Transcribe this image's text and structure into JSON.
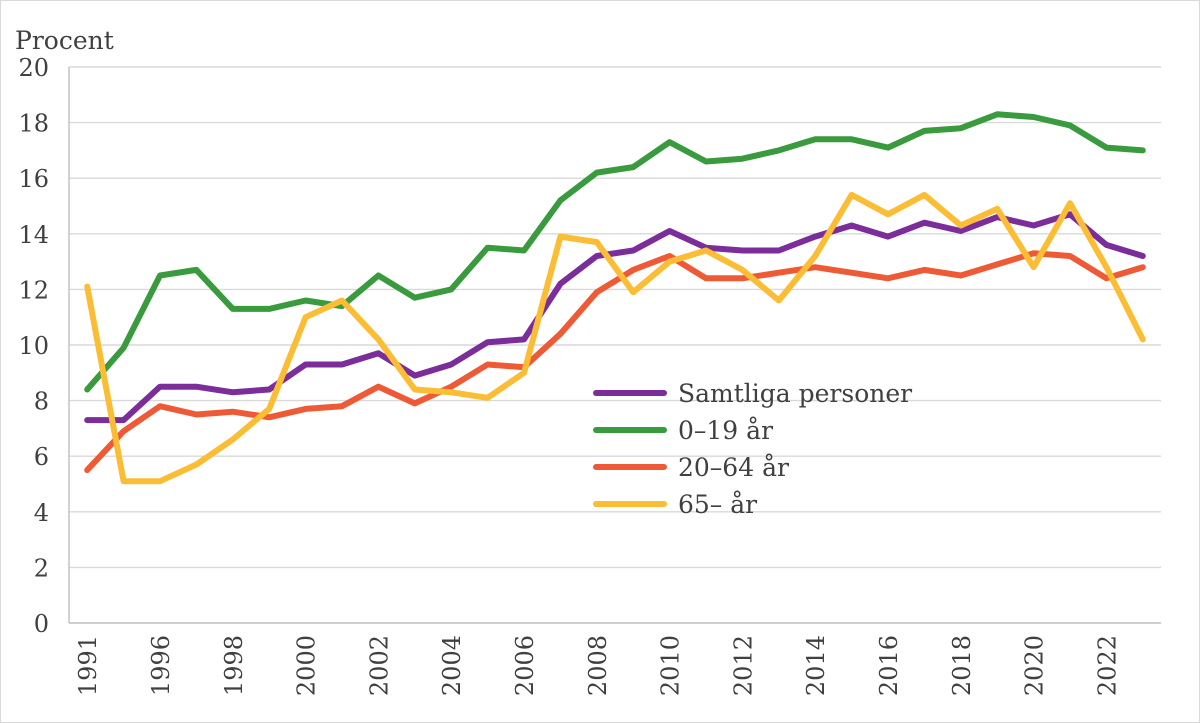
{
  "chart_data": {
    "type": "line",
    "ylabel": "Procent",
    "ylim": [
      0,
      20
    ],
    "yticks": [
      0,
      2,
      4,
      6,
      8,
      10,
      12,
      14,
      16,
      18,
      20
    ],
    "x": [
      1991,
      1995,
      1996,
      1997,
      1998,
      1999,
      2000,
      2001,
      2002,
      2003,
      2004,
      2005,
      2006,
      2007,
      2008,
      2009,
      2010,
      2011,
      2012,
      2013,
      2014,
      2015,
      2016,
      2017,
      2018,
      2019,
      2020,
      2021,
      2022,
      2023
    ],
    "xtick_labels": [
      "1991",
      "1996",
      "1998",
      "2000",
      "2002",
      "2004",
      "2006",
      "2008",
      "2010",
      "2012",
      "2014",
      "2016",
      "2018",
      "2020",
      "2022"
    ],
    "grid": true,
    "legend_position": "center-right",
    "series": [
      {
        "name": "Samtliga personer",
        "color": "#7b2d9a",
        "values": [
          7.3,
          7.3,
          8.5,
          8.5,
          8.3,
          8.4,
          9.3,
          9.3,
          9.7,
          8.9,
          9.3,
          10.1,
          10.2,
          12.2,
          13.2,
          13.4,
          14.1,
          13.5,
          13.4,
          13.4,
          13.9,
          14.3,
          13.9,
          14.4,
          14.1,
          14.6,
          14.3,
          14.7,
          13.6,
          13.2
        ]
      },
      {
        "name": "0–19 år",
        "color": "#3a9a3e",
        "values": [
          8.4,
          9.9,
          12.5,
          12.7,
          11.3,
          11.3,
          11.6,
          11.4,
          12.5,
          11.7,
          12.0,
          13.5,
          13.4,
          15.2,
          16.2,
          16.4,
          17.3,
          16.6,
          16.7,
          17.0,
          17.4,
          17.4,
          17.1,
          17.7,
          17.8,
          18.3,
          18.2,
          17.9,
          17.1,
          17.0
        ]
      },
      {
        "name": "20–64 år",
        "color": "#ef5a36",
        "values": [
          5.5,
          6.9,
          7.8,
          7.5,
          7.6,
          7.4,
          7.7,
          7.8,
          8.5,
          7.9,
          8.5,
          9.3,
          9.2,
          10.4,
          11.9,
          12.7,
          13.2,
          12.4,
          12.4,
          12.6,
          12.8,
          12.6,
          12.4,
          12.7,
          12.5,
          12.9,
          13.3,
          13.2,
          12.4,
          12.8
        ]
      },
      {
        "name": "65– år",
        "color": "#fbbd34",
        "values": [
          12.1,
          5.1,
          5.1,
          5.7,
          6.6,
          7.7,
          11.0,
          11.6,
          10.2,
          8.4,
          8.3,
          8.1,
          9.0,
          13.9,
          13.7,
          11.9,
          13.0,
          13.4,
          12.7,
          11.6,
          13.2,
          15.4,
          14.7,
          15.4,
          14.3,
          14.9,
          12.8,
          15.1,
          12.8,
          10.2
        ]
      }
    ]
  }
}
